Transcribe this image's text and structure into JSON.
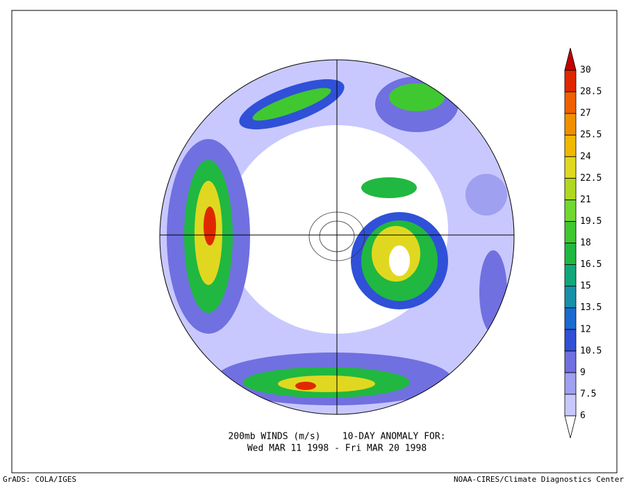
{
  "title_lines": [
    "200mb WINDS (m/s)    10-DAY ANOMALY FOR:",
    "Wed MAR 11 1998 - Fri MAR 20 1998"
  ],
  "footer_left": "GrADS: COLA/IGES",
  "footer_right": "NOAA-CIRES/Climate Diagnostics Center",
  "colorbar": {
    "levels": [
      6,
      7.5,
      9,
      10.5,
      12,
      13.5,
      15,
      16.5,
      18,
      19.5,
      21,
      22.5,
      24,
      25.5,
      27,
      28.5,
      30
    ],
    "colors": [
      "#ffffff",
      "#c8c8ff",
      "#a0a0f0",
      "#7070e0",
      "#3050d8",
      "#1a6ad0",
      "#1890a8",
      "#10a878",
      "#20b840",
      "#40c830",
      "#70d830",
      "#b0d820",
      "#e0d820",
      "#f0b800",
      "#f09000",
      "#f06000",
      "#e02800",
      "#c00000"
    ]
  }
}
